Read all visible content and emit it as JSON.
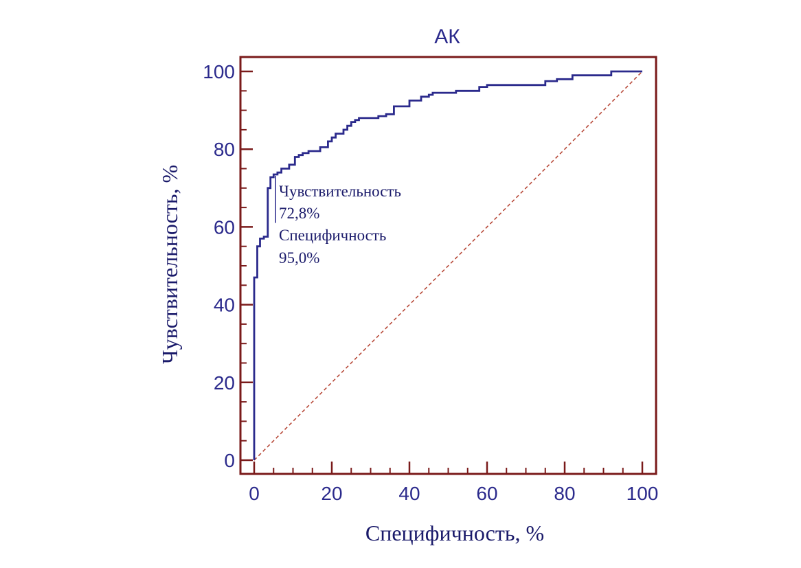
{
  "chart_data": {
    "type": "line",
    "title": "АК",
    "xlabel": "Специфичность, %",
    "ylabel": "Чувствительность, %",
    "xlim": [
      0,
      100
    ],
    "ylim": [
      0,
      100
    ],
    "x_ticks": [
      0,
      20,
      40,
      60,
      80,
      100
    ],
    "y_ticks": [
      0,
      20,
      40,
      60,
      80,
      100
    ],
    "x_minor_step": 5,
    "y_minor_step": 5,
    "grid": false,
    "colors": {
      "roc": "#2b2a8c",
      "frame": "#7a1a1a",
      "diagonal": "#b84a3a",
      "text": "#1a1a6a"
    },
    "series": [
      {
        "style": "step",
        "x": [
          0,
          0,
          0.8,
          0.8,
          1.5,
          1.5,
          2.5,
          2.5,
          3.5,
          3.5,
          4.2,
          4.2,
          5.0,
          5.0,
          6.0,
          6.0,
          7.0,
          7.0,
          9.0,
          9.0,
          10.5,
          10.5,
          11.5,
          11.5,
          12.5,
          12.5,
          14.0,
          14.0,
          17.0,
          17.0,
          19.0,
          19.0,
          20.0,
          20.0,
          21.0,
          21.0,
          23.0,
          23.0,
          24.0,
          24.0,
          25.0,
          25.0,
          26.0,
          26.0,
          27.0,
          27.0,
          32.0,
          32.0,
          34.0,
          34.0,
          36.0,
          36.0,
          40.0,
          40.0,
          43.0,
          43.0,
          45.0,
          45.0,
          46.0,
          46.0,
          52.0,
          52.0,
          58.0,
          58.0,
          60.0,
          60.0,
          75.0,
          75.0,
          78.0,
          78.0,
          82.0,
          82.0,
          92.0,
          92.0,
          100.0
        ],
        "y": [
          0,
          47,
          47,
          55,
          55,
          57,
          57,
          57.5,
          57.5,
          70,
          70,
          72.8,
          72.8,
          73.5,
          73.5,
          74,
          74,
          75,
          75,
          76,
          76,
          78,
          78,
          78.5,
          78.5,
          79,
          79,
          79.5,
          79.5,
          80.5,
          80.5,
          82,
          82,
          83,
          83,
          84,
          84,
          85,
          85,
          86,
          86,
          87,
          87,
          87.5,
          87.5,
          88,
          88,
          88.5,
          88.5,
          89,
          89,
          91,
          91,
          92.5,
          92.5,
          93.5,
          93.5,
          94,
          94,
          94.5,
          94.5,
          95,
          95,
          96,
          96,
          96.5,
          96.5,
          97.5,
          97.5,
          98,
          98,
          99,
          99,
          100,
          100
        ]
      },
      {
        "style": "dashed",
        "x": [
          0,
          100
        ],
        "y": [
          0,
          100
        ]
      }
    ],
    "annotation": {
      "marker_x": 5.0,
      "marker_y_range": [
        57.5,
        72.8
      ],
      "lines": [
        "Чувствительность",
        "72,8%",
        "Специфичность",
        "95,0%"
      ]
    }
  }
}
